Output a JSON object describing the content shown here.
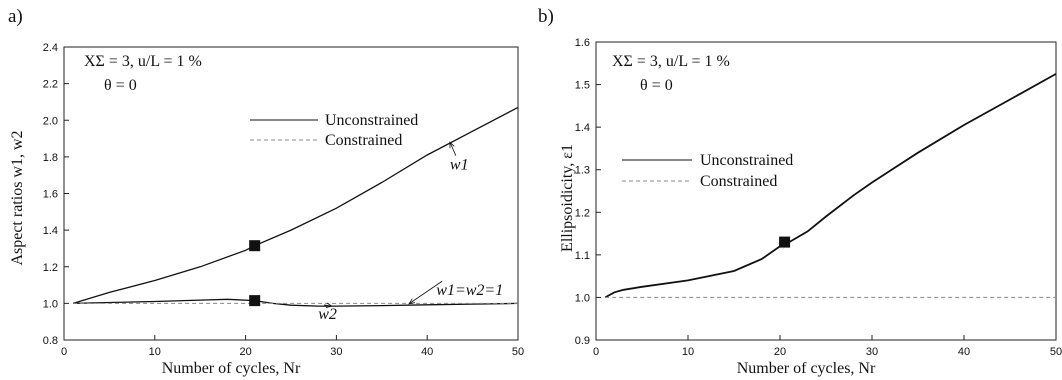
{
  "chart_data": [
    {
      "panel_label": "a)",
      "type": "line",
      "conditions": [
        "XΣ = 3,  u/L = 1 %",
        "θ = 0"
      ],
      "xlabel": "Number of cycles, Nr",
      "ylabel": "Aspect ratios w1, w2",
      "xlim": [
        0,
        50
      ],
      "ylim": [
        0.8,
        2.4
      ],
      "xticks": [
        "0",
        "10",
        "20",
        "30",
        "40",
        "50"
      ],
      "yticks": [
        "0.8",
        "1.0",
        "1.2",
        "1.4",
        "1.6",
        "1.8",
        "2.0",
        "2.2",
        "2.4"
      ],
      "legend": {
        "placement": "top-center",
        "entries": [
          "Unconstrained",
          "Constrained"
        ]
      },
      "series": [
        {
          "name": "w1",
          "style": "solid",
          "x": [
            1,
            5,
            10,
            15,
            20,
            21,
            25,
            30,
            35,
            40,
            45,
            50
          ],
          "y": [
            1.0,
            1.06,
            1.125,
            1.2,
            1.29,
            1.315,
            1.4,
            1.52,
            1.66,
            1.81,
            1.94,
            2.07
          ]
        },
        {
          "name": "w2",
          "style": "solid",
          "x": [
            1,
            5,
            10,
            15,
            18,
            21,
            23,
            25,
            28,
            30,
            35,
            40,
            45,
            50
          ],
          "y": [
            1.0,
            1.005,
            1.01,
            1.018,
            1.022,
            1.015,
            1.0,
            0.99,
            0.985,
            0.985,
            0.988,
            0.992,
            0.996,
            1.0
          ]
        },
        {
          "name": "w1=w2=1",
          "style": "dashed",
          "x": [
            1,
            50
          ],
          "y": [
            1.0,
            1.0
          ]
        }
      ],
      "markers": [
        {
          "x": 21,
          "y": 1.315
        },
        {
          "x": 21,
          "y": 1.015
        }
      ],
      "annotations": [
        {
          "text": "w1",
          "x": 42.5,
          "y": 1.73,
          "arrow_to": [
            42.5,
            1.88
          ]
        },
        {
          "text": "w1=w2=1",
          "x": 41,
          "y": 1.045,
          "arrow_to": [
            38,
            0.998
          ]
        },
        {
          "text": "w2",
          "x": 28,
          "y": 0.915,
          "arrow_to": [
            29.5,
            0.985
          ]
        }
      ]
    },
    {
      "panel_label": "b)",
      "type": "line",
      "conditions": [
        "XΣ = 3,  u/L = 1 %",
        "θ = 0"
      ],
      "xlabel": "Number of cycles, Nr",
      "ylabel": "Ellipsoidicity, ε1",
      "xlim": [
        0,
        50
      ],
      "ylim": [
        0.9,
        1.6
      ],
      "xticks": [
        "0",
        "10",
        "20",
        "30",
        "40",
        "50"
      ],
      "yticks": [
        "0.9",
        "1.0",
        "1.1",
        "1.2",
        "1.3",
        "1.4",
        "1.5",
        "1.6"
      ],
      "legend": {
        "placement": "upper-left",
        "entries": [
          "Unconstrained",
          "Constrained"
        ]
      },
      "series": [
        {
          "name": "Unconstrained",
          "style": "solid",
          "x": [
            1,
            2,
            3,
            5,
            10,
            15,
            18,
            20,
            21,
            23,
            25,
            28,
            30,
            35,
            40,
            45,
            50
          ],
          "y": [
            1.0,
            1.012,
            1.018,
            1.025,
            1.04,
            1.062,
            1.09,
            1.12,
            1.13,
            1.155,
            1.19,
            1.24,
            1.27,
            1.34,
            1.405,
            1.465,
            1.525
          ]
        },
        {
          "name": "Constrained",
          "style": "dashed",
          "x": [
            1,
            50
          ],
          "y": [
            1.0,
            1.0
          ]
        }
      ],
      "markers": [
        {
          "x": 20.5,
          "y": 1.13
        }
      ],
      "annotations": []
    }
  ]
}
